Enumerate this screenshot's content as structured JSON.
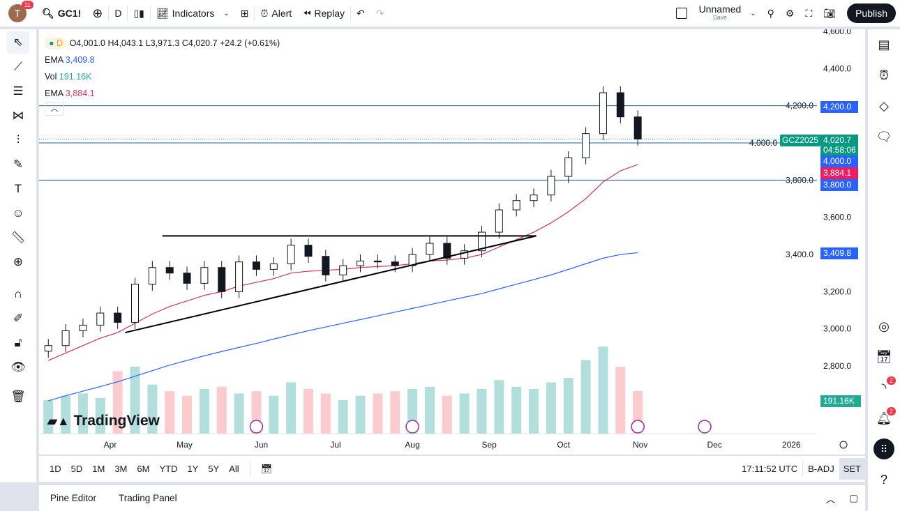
{
  "header": {
    "avatar_letter": "T",
    "notifications": "11",
    "symbol": "GC1!",
    "interval": "D",
    "indicators": "Indicators",
    "alert": "Alert",
    "replay": "Replay",
    "layout_name": "Unnamed",
    "save": "Save",
    "publish": "Publish"
  },
  "legend": {
    "interval": "D",
    "ohlc": "O4,001.0 H4,043.1 L3,971.3 C4,020.7 +24.2 (+0.61%)",
    "ema1_label": "EMA",
    "ema1_value": "3,409.8",
    "vol_label": "Vol",
    "vol_value": "191.16K",
    "ema2_label": "EMA",
    "ema2_value": "3,884.1"
  },
  "price_axis": [
    "4,600.0",
    "4,400.0",
    "4,200.0",
    "4,000.0",
    "3,800.0",
    "3,600.0",
    "3,400.0",
    "3,200.0",
    "3,000.0",
    "2,800.0"
  ],
  "price_labels": {
    "symbol": "GCZ2025",
    "last": "4,020.7",
    "countdown": "04:58:06",
    "line_4200": "4,200.0",
    "line_4000": "4,000.0",
    "ema2": "3,884.1",
    "line_3800": "3,800.0",
    "ema1": "3,409.8",
    "volume": "191.16K"
  },
  "time_axis": [
    "Apr",
    "May",
    "Jun",
    "Jul",
    "Aug",
    "Sep",
    "Oct",
    "Nov",
    "Dec",
    "2026"
  ],
  "logo": "TradingView",
  "ranges": [
    "1D",
    "5D",
    "1M",
    "3M",
    "6M",
    "YTD",
    "1Y",
    "5Y",
    "All"
  ],
  "clock": "17:11:52 UTC",
  "badj": "B-ADJ",
  "session": "SET",
  "panel": {
    "pine": "Pine Editor",
    "trading": "Trading Panel"
  },
  "right_badges": {
    "signals": "2",
    "alerts": "2"
  },
  "colors": {
    "up": "#089981",
    "down": "#f23645",
    "ema_fast": "#d1335c",
    "ema_slow": "#2962ff",
    "hline": "#2a5d8c"
  },
  "chart_data": {
    "type": "candlestick",
    "interval": "weekly-approx",
    "dates": [
      "2025-03-07",
      "2025-03-14",
      "2025-03-21",
      "2025-03-28",
      "2025-04-04",
      "2025-04-11",
      "2025-04-18",
      "2025-04-25",
      "2025-05-02",
      "2025-05-09",
      "2025-05-16",
      "2025-05-23",
      "2025-05-30",
      "2025-06-06",
      "2025-06-13",
      "2025-06-20",
      "2025-06-27",
      "2025-07-04",
      "2025-07-11",
      "2025-07-18",
      "2025-07-25",
      "2025-08-01",
      "2025-08-08",
      "2025-08-15",
      "2025-08-22",
      "2025-08-29",
      "2025-09-05",
      "2025-09-12",
      "2025-09-19",
      "2025-09-26",
      "2025-10-03",
      "2025-10-10",
      "2025-10-17",
      "2025-10-24",
      "2025-10-31"
    ],
    "close": [
      2910,
      2990,
      3020,
      3085,
      3035,
      3240,
      3330,
      3300,
      3245,
      3330,
      3200,
      3360,
      3320,
      3350,
      3450,
      3390,
      3290,
      3340,
      3365,
      3360,
      3340,
      3400,
      3460,
      3380,
      3420,
      3520,
      3640,
      3690,
      3720,
      3820,
      3920,
      4050,
      4270,
      4140,
      4020.7
    ],
    "volume_k": [
      150,
      170,
      180,
      160,
      280,
      300,
      220,
      190,
      170,
      200,
      210,
      180,
      190,
      170,
      230,
      200,
      180,
      150,
      170,
      180,
      190,
      200,
      210,
      170,
      180,
      200,
      240,
      210,
      200,
      230,
      250,
      330,
      390,
      300,
      191.16
    ],
    "ema_fast": [
      2830,
      2870,
      2910,
      2950,
      2980,
      3030,
      3080,
      3120,
      3150,
      3180,
      3200,
      3230,
      3250,
      3270,
      3300,
      3310,
      3315,
      3320,
      3330,
      3335,
      3340,
      3350,
      3365,
      3370,
      3380,
      3400,
      3440,
      3480,
      3520,
      3570,
      3630,
      3700,
      3790,
      3850,
      3884.1
    ],
    "ema_slow": [
      2613,
      2640,
      2665,
      2690,
      2715,
      2745,
      2775,
      2805,
      2830,
      2855,
      2878,
      2900,
      2922,
      2945,
      2968,
      2990,
      3010,
      3030,
      3050,
      3070,
      3090,
      3110,
      3130,
      3150,
      3170,
      3190,
      3215,
      3240,
      3265,
      3290,
      3320,
      3350,
      3380,
      3400,
      3409.8
    ],
    "hlines": [
      4200,
      4000,
      3800
    ],
    "trendlines": [
      {
        "from": [
          "2025-04-22",
          3500
        ],
        "to": [
          "2025-09-20",
          3500
        ]
      },
      {
        "from": [
          "2025-04-07",
          2980
        ],
        "to": [
          "2025-09-20",
          3500
        ]
      }
    ],
    "ylim": [
      2650,
      4650
    ]
  }
}
